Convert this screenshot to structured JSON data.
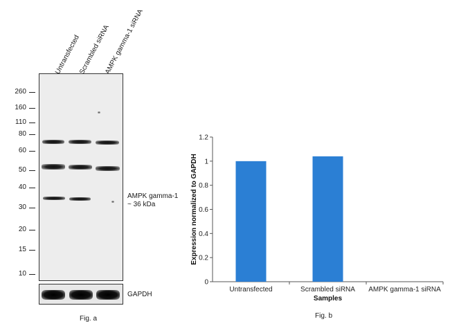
{
  "western_blot": {
    "lanes": [
      "Untransfected",
      "Scrambled siRNA",
      "AMPK gamma-1 siRNA"
    ],
    "mw_markers": [
      "260",
      "160",
      "110",
      "80",
      "60",
      "50",
      "40",
      "30",
      "20",
      "15",
      "10"
    ],
    "target_label_line1": "AMPK gamma-1",
    "target_label_line2": "~ 36 kDa",
    "loading_control": "GAPDH",
    "caption": "Fig. a"
  },
  "chart_data": {
    "type": "bar",
    "categories": [
      "Untransfected",
      "Scrambled siRNA",
      "AMPK gamma-1 siRNA"
    ],
    "values": [
      1.0,
      1.04,
      0.0
    ],
    "xlabel": "Samples",
    "ylabel": "Expression normalized to GAPDH",
    "ylim": [
      0,
      1.2
    ],
    "yticks": [
      "0",
      "0.2",
      "0.4",
      "0.6",
      "0.8",
      "1",
      "1.2"
    ],
    "bar_color": "#2b7fd4",
    "caption": "Fig. b"
  }
}
